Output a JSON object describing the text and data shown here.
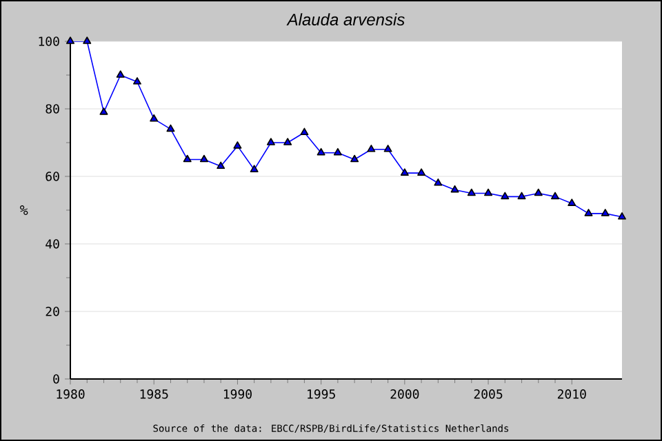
{
  "chart_data": {
    "type": "line",
    "title": "*Alauda arvensis*",
    "ylabel": "%",
    "x": [
      1980,
      1981,
      1982,
      1983,
      1984,
      1985,
      1986,
      1987,
      1988,
      1989,
      1990,
      1991,
      1992,
      1993,
      1994,
      1995,
      1996,
      1997,
      1998,
      1999,
      2000,
      2001,
      2002,
      2003,
      2004,
      2005,
      2006,
      2007,
      2008,
      2009,
      2010,
      2011,
      2012,
      2013
    ],
    "series": [
      {
        "color": "#0000ff",
        "values": [
          100,
          100,
          79,
          90,
          88,
          77,
          74,
          65,
          65,
          63,
          69,
          62,
          70,
          70,
          73,
          67,
          67,
          65,
          68,
          68,
          61,
          61,
          58,
          56,
          55,
          55,
          54,
          54,
          55,
          54,
          52,
          49,
          49,
          48
        ]
      }
    ],
    "xlim": [
      1980,
      2013
    ],
    "xticks": [
      1980,
      1985,
      1990,
      1995,
      2000,
      2005,
      2010
    ],
    "ylim": [
      0,
      100
    ],
    "yticks": [
      0,
      20,
      40,
      60,
      80,
      100
    ],
    "grid": "y",
    "marker": "triangle",
    "line_style": "solid",
    "annotations": [
      "Source of the data: EBCC/RSPB/BirdLife/Statistics Netherlands"
    ]
  }
}
